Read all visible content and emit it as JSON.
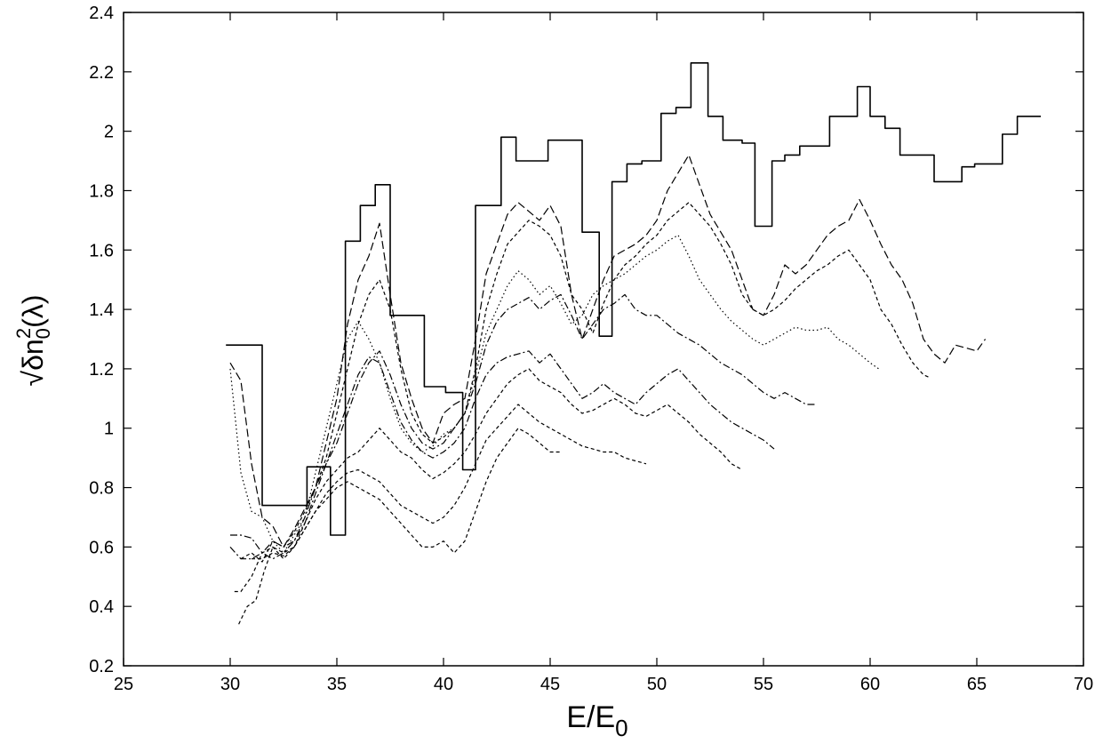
{
  "chart_data": {
    "type": "line",
    "title": "",
    "xlabel": "E/E",
    "xlabel_subscript": "0",
    "ylabel_sqrt": "√",
    "ylabel_main": "δn",
    "ylabel_sub": "0",
    "ylabel_sup": "2",
    "ylabel_tail": "(λ)",
    "xlim": [
      25,
      70
    ],
    "ylim": [
      0.2,
      2.4
    ],
    "xticks": [
      "25",
      "30",
      "35",
      "40",
      "45",
      "50",
      "55",
      "60",
      "65",
      "70"
    ],
    "yticks": [
      "0.2",
      "0.4",
      "0.6",
      "0.8",
      "1",
      "1.2",
      "1.4",
      "1.6",
      "1.8",
      "2",
      "2.2",
      "2.4"
    ],
    "grid": false,
    "legend": "none",
    "series": [
      {
        "style": "solid",
        "step": true,
        "x": [
          29.8,
          30.3,
          31.5,
          32.2,
          32.5,
          33.3,
          33.6,
          34.4,
          34.7,
          35.4,
          36.1,
          36.8,
          37.5,
          38.3,
          39.1,
          39.6,
          40.1,
          40.6,
          40.9,
          41.5,
          42.1,
          42.7,
          43.4,
          44.3,
          44.9,
          45.7,
          46.5,
          47.3,
          47.9,
          48.6,
          49.3,
          50.2,
          50.9,
          51.6,
          52.4,
          53.1,
          54.0,
          54.6,
          55.4,
          56.0,
          56.7,
          57.4,
          58.1,
          58.7,
          59.4,
          60.0,
          60.7,
          61.4,
          62.2,
          63.0,
          63.6,
          64.3,
          64.9,
          65.5,
          66.2,
          66.9,
          68.0
        ],
        "y": [
          1.28,
          1.28,
          0.74,
          0.74,
          0.74,
          0.74,
          0.87,
          0.87,
          0.64,
          1.63,
          1.75,
          1.82,
          1.38,
          1.38,
          1.14,
          1.14,
          1.12,
          1.12,
          0.86,
          1.75,
          1.75,
          1.98,
          1.9,
          1.9,
          1.97,
          1.97,
          1.66,
          1.31,
          1.83,
          1.89,
          1.9,
          2.06,
          2.08,
          2.23,
          2.05,
          1.97,
          1.96,
          1.68,
          1.9,
          1.92,
          1.95,
          1.95,
          2.05,
          2.05,
          2.15,
          2.05,
          2.01,
          1.92,
          1.92,
          1.83,
          1.83,
          1.88,
          1.89,
          1.89,
          1.99,
          2.05,
          2.05
        ]
      },
      {
        "style": "dash",
        "x": [
          30.0,
          30.5,
          31.0,
          31.5,
          32.0,
          32.5,
          33.0,
          33.5,
          34.0,
          34.5,
          35.0,
          35.5,
          36.0,
          36.5,
          37.0,
          37.5,
          38.0,
          38.5,
          39.0,
          39.5,
          40.0,
          40.5,
          41.0,
          41.5,
          42.0,
          42.5,
          43.0,
          43.5,
          44.0,
          44.5,
          45.0,
          45.5,
          46.0,
          46.5,
          47.0,
          47.5,
          48.0,
          48.5,
          49.0,
          49.5,
          50.0,
          50.5,
          51.0,
          51.5,
          52.0,
          52.5,
          53.0,
          53.5,
          54.0,
          54.5,
          55.0,
          55.5,
          56.0,
          56.5,
          57.0,
          57.5,
          58.0,
          58.5,
          59.0,
          59.5,
          60.0,
          60.5,
          61.0,
          61.5,
          62.0,
          62.5,
          63.0,
          63.5,
          64.0,
          64.5,
          65.0,
          65.4
        ],
        "y": [
          1.22,
          1.16,
          0.88,
          0.7,
          0.67,
          0.6,
          0.66,
          0.73,
          0.8,
          0.95,
          1.1,
          1.35,
          1.5,
          1.58,
          1.69,
          1.45,
          1.22,
          1.1,
          1.0,
          0.95,
          1.05,
          1.08,
          1.1,
          1.3,
          1.52,
          1.62,
          1.72,
          1.76,
          1.73,
          1.7,
          1.75,
          1.68,
          1.45,
          1.3,
          1.4,
          1.5,
          1.58,
          1.6,
          1.62,
          1.65,
          1.7,
          1.8,
          1.86,
          1.92,
          1.82,
          1.72,
          1.66,
          1.6,
          1.5,
          1.4,
          1.38,
          1.45,
          1.55,
          1.52,
          1.55,
          1.6,
          1.65,
          1.68,
          1.7,
          1.77,
          1.7,
          1.62,
          1.55,
          1.5,
          1.42,
          1.3,
          1.25,
          1.22,
          1.28,
          1.27,
          1.26,
          1.3
        ]
      },
      {
        "style": "short-dash",
        "x": [
          30.5,
          31.0,
          31.5,
          32.0,
          32.5,
          33.0,
          33.5,
          34.0,
          34.5,
          35.0,
          35.5,
          36.0,
          36.5,
          37.0,
          37.5,
          38.0,
          38.5,
          39.0,
          39.5,
          40.0,
          40.5,
          41.0,
          41.5,
          42.0,
          42.5,
          43.0,
          43.5,
          44.0,
          44.5,
          45.0,
          45.5,
          46.0,
          46.5,
          47.0,
          47.5,
          48.0,
          48.5,
          49.0,
          49.5,
          50.0,
          50.5,
          51.0,
          51.5,
          52.0,
          52.5,
          53.0,
          53.5,
          54.0,
          54.5,
          55.0,
          55.5,
          56.0,
          56.5,
          57.0,
          57.5,
          58.0,
          58.5,
          59.0,
          59.5,
          60.0,
          60.5,
          61.0,
          61.5,
          62.0,
          62.5,
          62.8
        ],
        "y": [
          0.56,
          0.58,
          0.55,
          0.62,
          0.6,
          0.65,
          0.72,
          0.8,
          0.9,
          1.05,
          1.2,
          1.35,
          1.45,
          1.5,
          1.4,
          1.2,
          1.05,
          0.98,
          0.95,
          0.97,
          1.0,
          1.05,
          1.2,
          1.4,
          1.52,
          1.62,
          1.66,
          1.7,
          1.68,
          1.65,
          1.58,
          1.45,
          1.4,
          1.32,
          1.42,
          1.5,
          1.55,
          1.58,
          1.62,
          1.65,
          1.7,
          1.73,
          1.76,
          1.72,
          1.68,
          1.62,
          1.55,
          1.45,
          1.4,
          1.38,
          1.4,
          1.43,
          1.47,
          1.5,
          1.53,
          1.55,
          1.58,
          1.6,
          1.55,
          1.5,
          1.4,
          1.35,
          1.28,
          1.22,
          1.18,
          1.17
        ]
      },
      {
        "style": "dot",
        "x": [
          30.0,
          30.5,
          31.0,
          31.5,
          32.0,
          32.5,
          33.0,
          33.5,
          34.0,
          34.5,
          35.0,
          35.5,
          36.0,
          36.5,
          37.0,
          37.5,
          38.0,
          38.5,
          39.0,
          39.5,
          40.0,
          40.5,
          41.0,
          41.5,
          42.0,
          42.5,
          43.0,
          43.5,
          44.0,
          44.5,
          45.0,
          45.5,
          46.0,
          46.5,
          47.0,
          47.5,
          48.0,
          48.5,
          49.0,
          49.5,
          50.0,
          50.5,
          51.0,
          51.5,
          52.0,
          52.5,
          53.0,
          53.5,
          54.0,
          54.5,
          55.0,
          55.5,
          56.0,
          56.5,
          57.0,
          57.5,
          58.0,
          58.5,
          59.0,
          59.5,
          60.0,
          60.4
        ],
        "y": [
          1.2,
          0.85,
          0.72,
          0.7,
          0.62,
          0.58,
          0.64,
          0.7,
          0.85,
          1.0,
          1.15,
          1.3,
          1.36,
          1.3,
          1.22,
          1.1,
          1.0,
          0.95,
          0.92,
          0.94,
          0.98,
          1.0,
          1.05,
          1.18,
          1.32,
          1.4,
          1.48,
          1.53,
          1.5,
          1.45,
          1.48,
          1.42,
          1.35,
          1.38,
          1.45,
          1.48,
          1.5,
          1.52,
          1.55,
          1.58,
          1.6,
          1.63,
          1.65,
          1.58,
          1.5,
          1.45,
          1.4,
          1.36,
          1.33,
          1.3,
          1.28,
          1.3,
          1.32,
          1.34,
          1.33,
          1.33,
          1.34,
          1.3,
          1.28,
          1.25,
          1.22,
          1.2
        ]
      },
      {
        "style": "dash-dot",
        "x": [
          30.0,
          30.5,
          31.0,
          31.5,
          32.0,
          32.5,
          33.0,
          33.5,
          34.0,
          34.5,
          35.0,
          35.5,
          36.0,
          36.5,
          37.0,
          37.5,
          38.0,
          38.5,
          39.0,
          39.5,
          40.0,
          40.5,
          41.0,
          41.5,
          42.0,
          42.5,
          43.0,
          43.5,
          44.0,
          44.5,
          45.0,
          45.5,
          46.0,
          46.5,
          47.0,
          47.5,
          48.0,
          48.5,
          49.0,
          49.5,
          50.0,
          50.5,
          51.0,
          51.5,
          52.0,
          52.5,
          53.0,
          53.5,
          54.0,
          54.5,
          55.0,
          55.5,
          56.0,
          56.5,
          57.0,
          57.5
        ],
        "y": [
          0.6,
          0.56,
          0.56,
          0.58,
          0.62,
          0.6,
          0.62,
          0.7,
          0.8,
          0.88,
          0.95,
          1.05,
          1.15,
          1.22,
          1.26,
          1.18,
          1.08,
          1.0,
          0.95,
          0.93,
          0.95,
          1.0,
          1.05,
          1.15,
          1.28,
          1.36,
          1.4,
          1.42,
          1.44,
          1.4,
          1.43,
          1.45,
          1.38,
          1.3,
          1.35,
          1.4,
          1.42,
          1.45,
          1.4,
          1.38,
          1.38,
          1.35,
          1.32,
          1.3,
          1.28,
          1.25,
          1.22,
          1.2,
          1.18,
          1.15,
          1.12,
          1.1,
          1.12,
          1.1,
          1.08,
          1.08
        ]
      },
      {
        "style": "dash-dot",
        "x": [
          30.0,
          30.5,
          31.0,
          31.5,
          32.0,
          32.5,
          33.0,
          33.5,
          34.0,
          34.5,
          35.0,
          35.5,
          36.0,
          36.5,
          37.0,
          37.5,
          38.0,
          38.5,
          39.0,
          39.5,
          40.0,
          40.5,
          41.0,
          41.5,
          42.0,
          42.5,
          43.0,
          43.5,
          44.0,
          44.5,
          45.0,
          45.5,
          46.0,
          46.5,
          47.0,
          47.5,
          48.0,
          48.5,
          49.0,
          49.5,
          50.0,
          50.5,
          51.0,
          51.5,
          52.0,
          52.5,
          53.0,
          53.5,
          54.0,
          54.5,
          55.0,
          55.5
        ],
        "y": [
          0.64,
          0.64,
          0.63,
          0.58,
          0.56,
          0.58,
          0.62,
          0.68,
          0.78,
          0.88,
          0.98,
          1.08,
          1.18,
          1.24,
          1.22,
          1.12,
          1.02,
          0.96,
          0.92,
          0.9,
          0.92,
          0.95,
          1.0,
          1.1,
          1.18,
          1.22,
          1.24,
          1.25,
          1.26,
          1.22,
          1.25,
          1.2,
          1.15,
          1.1,
          1.12,
          1.15,
          1.12,
          1.1,
          1.08,
          1.12,
          1.15,
          1.18,
          1.2,
          1.16,
          1.12,
          1.08,
          1.05,
          1.02,
          1.0,
          0.98,
          0.96,
          0.93
        ]
      },
      {
        "style": "short-dash",
        "x": [
          30.2,
          30.5,
          31.0,
          31.5,
          32.0,
          32.5,
          33.0,
          33.5,
          34.0,
          34.5,
          35.0,
          35.5,
          36.0,
          36.5,
          37.0,
          37.5,
          38.0,
          38.5,
          39.0,
          39.5,
          40.0,
          40.5,
          41.0,
          41.5,
          42.0,
          42.5,
          43.0,
          43.5,
          44.0,
          44.5,
          45.0,
          45.5,
          46.0,
          46.5,
          47.0,
          47.5,
          48.0,
          48.5,
          49.0,
          49.5,
          50.0,
          50.5,
          51.0,
          51.5,
          52.0,
          52.5,
          53.0,
          53.5,
          54.0
        ],
        "y": [
          0.45,
          0.45,
          0.5,
          0.58,
          0.6,
          0.56,
          0.6,
          0.68,
          0.76,
          0.82,
          0.86,
          0.9,
          0.92,
          0.96,
          1.0,
          0.96,
          0.92,
          0.9,
          0.86,
          0.83,
          0.85,
          0.88,
          0.92,
          0.98,
          1.05,
          1.1,
          1.15,
          1.18,
          1.2,
          1.16,
          1.14,
          1.12,
          1.08,
          1.05,
          1.06,
          1.08,
          1.1,
          1.08,
          1.05,
          1.04,
          1.06,
          1.08,
          1.05,
          1.02,
          0.98,
          0.95,
          0.92,
          0.88,
          0.86
        ]
      },
      {
        "style": "short-dash",
        "x": [
          30.4,
          30.8,
          31.2,
          31.6,
          32.0,
          32.5,
          33.0,
          33.5,
          34.0,
          34.5,
          35.0,
          35.5,
          36.0,
          36.5,
          37.0,
          37.5,
          38.0,
          38.5,
          39.0,
          39.5,
          40.0,
          40.5,
          41.0,
          41.5,
          42.0,
          42.5,
          43.0,
          43.5,
          44.0,
          44.5,
          45.0,
          45.5,
          46.0,
          46.5,
          47.0,
          47.5,
          48.0,
          48.5,
          49.0,
          49.5
        ],
        "y": [
          0.34,
          0.4,
          0.42,
          0.52,
          0.6,
          0.58,
          0.6,
          0.66,
          0.72,
          0.78,
          0.82,
          0.85,
          0.86,
          0.84,
          0.82,
          0.78,
          0.74,
          0.72,
          0.7,
          0.68,
          0.7,
          0.74,
          0.8,
          0.88,
          0.96,
          1.0,
          1.04,
          1.08,
          1.05,
          1.02,
          1.0,
          0.98,
          0.96,
          0.94,
          0.93,
          0.92,
          0.92,
          0.9,
          0.89,
          0.88
        ]
      },
      {
        "style": "short-dash",
        "x": [
          31.0,
          31.5,
          32.0,
          32.5,
          33.0,
          33.5,
          34.0,
          34.5,
          35.0,
          35.5,
          36.0,
          36.5,
          37.0,
          37.5,
          38.0,
          38.5,
          39.0,
          39.5,
          40.0,
          40.5,
          41.0,
          41.5,
          42.0,
          42.5,
          43.0,
          43.5,
          44.0,
          44.5,
          45.0,
          45.5
        ],
        "y": [
          0.56,
          0.56,
          0.58,
          0.57,
          0.6,
          0.66,
          0.72,
          0.76,
          0.8,
          0.82,
          0.8,
          0.78,
          0.76,
          0.72,
          0.68,
          0.64,
          0.6,
          0.6,
          0.62,
          0.58,
          0.62,
          0.72,
          0.82,
          0.9,
          0.95,
          1.0,
          0.98,
          0.95,
          0.92,
          0.92
        ]
      }
    ]
  }
}
